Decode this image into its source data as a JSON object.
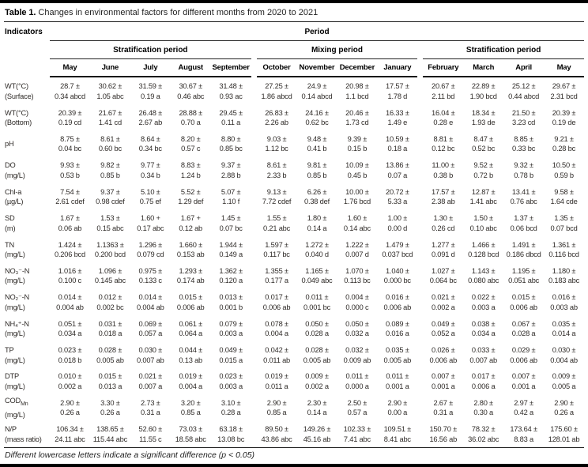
{
  "title": {
    "label": "Table 1.",
    "text": "Changes in environmental factors for different months from 2020 to 2021"
  },
  "header": {
    "indicators": "Indicators",
    "period": "Period",
    "groups": [
      {
        "label": "Stratification period",
        "span": 5
      },
      {
        "label": "Mixing period",
        "span": 4
      },
      {
        "label": "Stratification period",
        "span": 4
      }
    ],
    "months": [
      "May",
      "June",
      "July",
      "August",
      "September",
      "October",
      "November",
      "December",
      "January",
      "February",
      "March",
      "April",
      "May"
    ]
  },
  "rows": [
    {
      "name": "WT(°C)",
      "unit": "(Surface)",
      "values": [
        "28.7 ±",
        "30.62 ±",
        "31.59 ±",
        "30.67 ±",
        "31.48 ±",
        "27.25 ±",
        "24.9 ±",
        "20.98 ±",
        "17.57 ±",
        "20.67 ±",
        "22.89 ±",
        "25.12 ±",
        "29.67 ±"
      ],
      "errors": [
        "0.34 abcd",
        "1.05 abc",
        "0.19 a",
        "0.46 abc",
        "0.93 ac",
        "1.86 abcd",
        "0.14 abcd",
        "1.1 bcd",
        "1.78 d",
        "2.11 bd",
        "1.90 bcd",
        "0.44 abcd",
        "2.31 bcd"
      ]
    },
    {
      "name": "WT(°C)",
      "unit": "(Bottom)",
      "values": [
        "20.39 ±",
        "21.67 ±",
        "26.48 ±",
        "28.88 ±",
        "29.45 ±",
        "26.83 ±",
        "24.16 ±",
        "20.46 ±",
        "16.33 ±",
        "16.04 ±",
        "18.34 ±",
        "21.50 ±",
        "20.39 ±"
      ],
      "errors": [
        "0.19 cd",
        "1.41 cd",
        "2.67 ab",
        "0.70 a",
        "0.11 a",
        "2.26 ab",
        "0.62 bc",
        "1.73 cd",
        "1.49 e",
        "0.28 e",
        "1.93 de",
        "3.23 cd",
        "0.19 de"
      ]
    },
    {
      "name": "pH",
      "unit": "",
      "values": [
        "8.75 ±",
        "8.61 ±",
        "8.64 ±",
        "8.20 ±",
        "8.80 ±",
        "9.03 ±",
        "9.48 ±",
        "9.39 ±",
        "10.59 ±",
        "8.81 ±",
        "8.47 ±",
        "8.85 ±",
        "9.21 ±"
      ],
      "errors": [
        "0.04 bc",
        "0.60 bc",
        "0.34 bc",
        "0.57 c",
        "0.85 bc",
        "1.12 bc",
        "0.41 b",
        "0.15 b",
        "0.18 a",
        "0.12 bc",
        "0.52 bc",
        "0.33 bc",
        "0.28 bc"
      ]
    },
    {
      "name": "DO",
      "unit": "(mg/L)",
      "values": [
        "9.93 ±",
        "9.82 ±",
        "9.77 ±",
        "8.83 ±",
        "9.37 ±",
        "8.61 ±",
        "9.81 ±",
        "10.09 ±",
        "13.86 ±",
        "11.00 ±",
        "9.52 ±",
        "9.32 ±",
        "10.50 ±"
      ],
      "errors": [
        "0.53 b",
        "0.85 b",
        "0.34 b",
        "1.24 b",
        "2.88 b",
        "2.33 b",
        "0.85 b",
        "0.45 b",
        "0.07 a",
        "0.38 b",
        "0.72 b",
        "0.78 b",
        "0.59 b"
      ]
    },
    {
      "name": "Chl-a",
      "unit": "(µg/L)",
      "values": [
        "7.54 ±",
        "9.37 ±",
        "5.10 ±",
        "5.52 ±",
        "5.07 ±",
        "9.13 ±",
        "6.26 ±",
        "10.00 ±",
        "20.72 ±",
        "17.57 ±",
        "12.87 ±",
        "13.41 ±",
        "9.58 ±"
      ],
      "errors": [
        "2.61 cdef",
        "0.98 cdef",
        "0.75 ef",
        "1.29 def",
        "1.10 f",
        "7.72 cdef",
        "0.38 def",
        "1.76 bcd",
        "5.33 a",
        "2.38 ab",
        "1.41 abc",
        "0.76 abc",
        "1.64 cde"
      ]
    },
    {
      "name": "SD",
      "unit": "(m)",
      "values": [
        "1.67 ±",
        "1.53 ±",
        "1.60 +",
        "1.67 +",
        "1.45 ±",
        "1.55 ±",
        "1.80 ±",
        "1.60 ±",
        "1.00 ±",
        "1.30 ±",
        "1.50 ±",
        "1.37 ±",
        "1.35 ±"
      ],
      "errors": [
        "0.06 ab",
        "0.15 abc",
        "0.17 abc",
        "0.12 ab",
        "0.07 bc",
        "0.21 abc",
        "0.14 a",
        "0.14 abc",
        "0.00 d",
        "0.26 cd",
        "0.10 abc",
        "0.06 bcd",
        "0.07 bcd"
      ]
    },
    {
      "name": "TN",
      "unit": "(mg/L)",
      "values": [
        "1.424 ±",
        "1.1363 ±",
        "1.296 ±",
        "1.660 ±",
        "1.944 ±",
        "1.597 ±",
        "1.272 ±",
        "1.222 ±",
        "1.479 ±",
        "1.277 ±",
        "1.466 ±",
        "1.491 ±",
        "1.361 ±"
      ],
      "errors": [
        "0.206 bcd",
        "0.200 bcd",
        "0.079 cd",
        "0.153 ab",
        "0.149 a",
        "0.117 bc",
        "0.040 d",
        "0.007 d",
        "0.037 bcd",
        "0.091 d",
        "0.128 bcd",
        "0.186 dbcd",
        "0.116 bcd"
      ]
    },
    {
      "name": "NO₃⁻-N",
      "unit": "(mg/L)",
      "values": [
        "1.016 ±",
        "1.096 ±",
        "0.975 ±",
        "1.293 ±",
        "1.362 ±",
        "1.355 ±",
        "1.165 ±",
        "1.070 ±",
        "1.040 ±",
        "1.027 ±",
        "1.143 ±",
        "1.195 ±",
        "1.180 ±"
      ],
      "errors": [
        "0.100 c",
        "0.145 abc",
        "0.133 c",
        "0.174 ab",
        "0.120 a",
        "0.177 a",
        "0.049 abc",
        "0.113 bc",
        "0.000 bc",
        "0.064 bc",
        "0.080 abc",
        "0.051 abc",
        "0.183 abc"
      ]
    },
    {
      "name": "NO₂⁻-N",
      "unit": "(mg/L)",
      "values": [
        "0.014 ±",
        "0.012 ±",
        "0.014 ±",
        "0.015 ±",
        "0.013 ±",
        "0.017 ±",
        "0.011 ±",
        "0.004 ±",
        "0.016 ±",
        "0.021 ±",
        "0.022 ±",
        "0.015 ±",
        "0.016 ±"
      ],
      "errors": [
        "0.004 ab",
        "0.002 bc",
        "0.004 ab",
        "0.006 ab",
        "0.001 b",
        "0.006 ab",
        "0.001 bc",
        "0.000 c",
        "0.006 ab",
        "0.002 a",
        "0.003 a",
        "0.006 ab",
        "0.003 ab"
      ]
    },
    {
      "name": "NH₄⁺-N",
      "unit": "(mg/L)",
      "values": [
        "0.051 ±",
        "0.031 ±",
        "0.069 ±",
        "0.061 ±",
        "0.079 ±",
        "0.078 ±",
        "0.050 ±",
        "0.050 ±",
        "0.089 ±",
        "0.049 ±",
        "0.038 ±",
        "0.067 ±",
        "0.035 ±"
      ],
      "errors": [
        "0.034 a",
        "0.018 a",
        "0.057 a",
        "0.064 a",
        "0.003 a",
        "0.004 a",
        "0.028 a",
        "0.032 a",
        "0.016 a",
        "0.052 a",
        "0.034 a",
        "0.028 a",
        "0.014 a"
      ]
    },
    {
      "name": "TP",
      "unit": "(mg/L)",
      "values": [
        "0.023 ±",
        "0.028 ±",
        "0.030 ±",
        "0.044 ±",
        "0.049 ±",
        "0.042 ±",
        "0.028 ±",
        "0.032 ±",
        "0.035 ±",
        "0.026 ±",
        "0.033 ±",
        "0.029 ±",
        "0.030 ±"
      ],
      "errors": [
        "0.018 b",
        "0.005 ab",
        "0.007 ab",
        "0.13 ab",
        "0.015 a",
        "0.011 ab",
        "0.005 ab",
        "0.009 ab",
        "0.005 ab",
        "0.006 ab",
        "0.007 ab",
        "0.006 ab",
        "0.004 ab"
      ]
    },
    {
      "name": "DTP",
      "unit": "(mg/L)",
      "values": [
        "0.010 ±",
        "0.015 ±",
        "0.021 ±",
        "0.019 ±",
        "0.023 ±",
        "0.019 ±",
        "0.009 ±",
        "0.011 ±",
        "0.011 ±",
        "0.007 ±",
        "0.017 ±",
        "0.007 ±",
        "0.009 ±"
      ],
      "errors": [
        "0.002 a",
        "0.013 a",
        "0.007 a",
        "0.004 a",
        "0.003 a",
        "0.011 a",
        "0.002 a",
        "0.000 a",
        "0.001 a",
        "0.001 a",
        "0.006 a",
        "0.001 a",
        "0.005 a"
      ]
    },
    {
      "name": "COD",
      "sub": "Mn",
      "unit": "(mg/L)",
      "values": [
        "2.90 ±",
        "3.30 ±",
        "2.73 ±",
        "3.20 ±",
        "3.10 ±",
        "2.90 ±",
        "2.30 ±",
        "2.50 ±",
        "2.90 ±",
        "2.67 ±",
        "2.80 ±",
        "2.97 ±",
        "2.90 ±"
      ],
      "errors": [
        "0.26 a",
        "0.26 a",
        "0.31 a",
        "0.85 a",
        "0.28 a",
        "0.85 a",
        "0.14 a",
        "0.57 a",
        "0.00 a",
        "0.31 a",
        "0.30 a",
        "0.42 a",
        "0.26 a"
      ]
    },
    {
      "name": "N/P",
      "unit": "(mass ratio)",
      "values": [
        "106.34 ±",
        "138.65 ±",
        "52.60 ±",
        "73.03 ±",
        "63.18 ±",
        "89.50 ±",
        "149.26 ±",
        "102.33 ±",
        "109.51 ±",
        "150.70 ±",
        "78.32 ±",
        "173.64 ±",
        "175.60 ±"
      ],
      "errors": [
        "24.11 abc",
        "115.44 abc",
        "11.55 c",
        "18.58 abc",
        "13.08 bc",
        "43.86 abc",
        "45.16 ab",
        "7.41 abc",
        "8.41 abc",
        "16.56 ab",
        "36.02 abc",
        "8.83 a",
        "128.01 ab"
      ]
    }
  ],
  "footnote": "Different lowercase letters indicate a significant difference (p < 0.05)"
}
